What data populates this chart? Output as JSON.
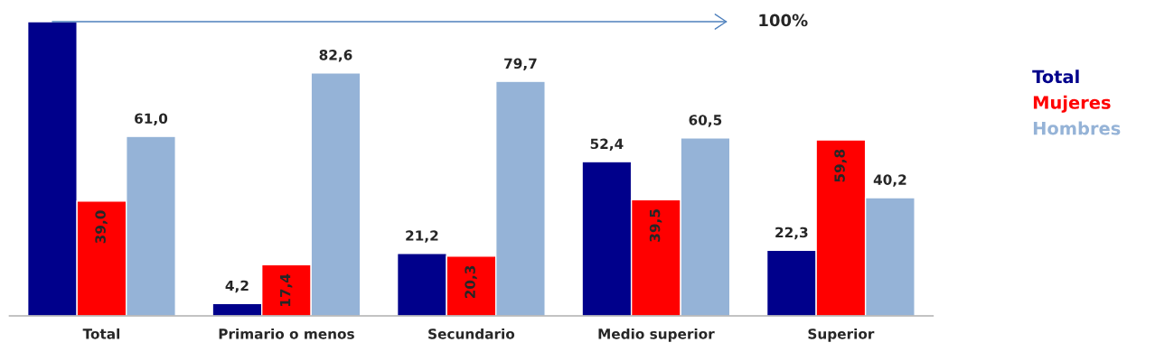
{
  "chart_data": {
    "type": "bar",
    "categories": [
      "Total",
      "Primario o menos",
      "Secundario",
      "Medio superior",
      "Superior"
    ],
    "series": [
      {
        "name": "Total",
        "color": "#00008b",
        "values": [
          100,
          4.2,
          21.2,
          52.4,
          22.3
        ],
        "value_labels": [
          null,
          "4,2",
          "21,2",
          "52,4",
          "22,3"
        ]
      },
      {
        "name": "Mujeres",
        "color": "#ff0000",
        "values": [
          39.0,
          17.4,
          20.3,
          39.5,
          59.8
        ],
        "value_labels": [
          "39,0",
          "17,4",
          "20,3",
          "39,5",
          "59,8"
        ]
      },
      {
        "name": "Hombres",
        "color": "#95b3d7",
        "values": [
          61.0,
          82.6,
          79.7,
          60.5,
          40.2
        ],
        "value_labels": [
          "61,0",
          "82,6",
          "79,7",
          "60,5",
          "40,2"
        ]
      }
    ],
    "ref_lines": [
      {
        "axis": "y",
        "value": 100,
        "label": "100%",
        "color": "#4f81bd"
      }
    ],
    "legend": "right",
    "grid": false
  }
}
